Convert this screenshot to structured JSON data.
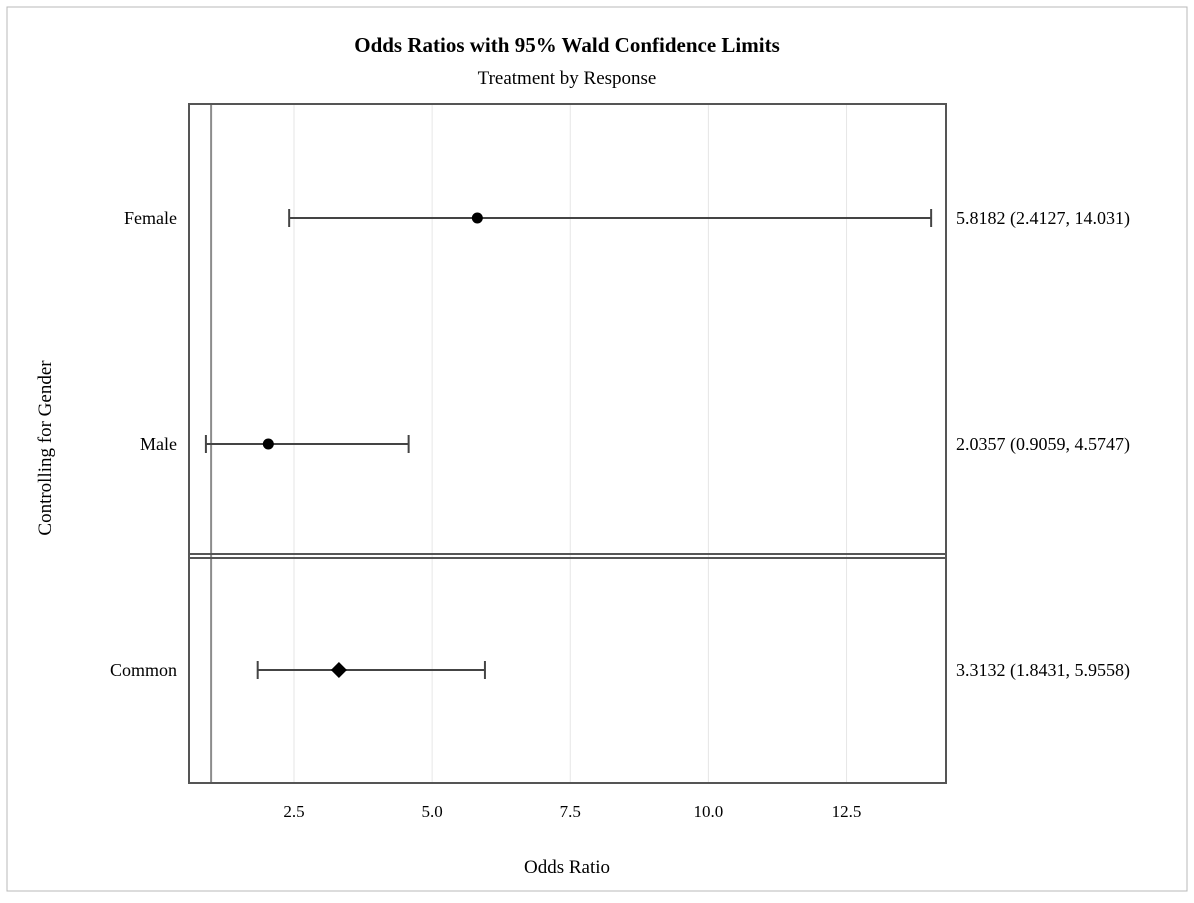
{
  "chart_data": {
    "type": "scatter",
    "title": "Odds Ratios with 95% Wald Confidence Limits",
    "subtitle": "Treatment by Response",
    "xlabel": "Odds Ratio",
    "ylabel": "Controlling for Gender",
    "xlim": [
      0.6,
      14.3
    ],
    "xticks": [
      2.5,
      5.0,
      7.5,
      10.0,
      12.5
    ],
    "xtick_labels": [
      "2.5",
      "5.0",
      "7.5",
      "10.0",
      "12.5"
    ],
    "reference_line": 1.0,
    "grid": true,
    "rows": [
      {
        "label": "Female",
        "estimate": 5.8182,
        "lower": 2.4127,
        "upper": 14.031,
        "marker": "circle",
        "annotation": "5.8182 (2.4127, 14.031)",
        "panel": 0
      },
      {
        "label": "Male",
        "estimate": 2.0357,
        "lower": 0.9059,
        "upper": 4.5747,
        "marker": "circle",
        "annotation": "2.0357 (0.9059, 4.5747)",
        "panel": 0
      },
      {
        "label": "Common",
        "estimate": 3.3132,
        "lower": 1.8431,
        "upper": 5.9558,
        "marker": "diamond",
        "annotation": "3.3132 (1.8431, 5.9558)",
        "panel": 1
      }
    ],
    "colors": {
      "line": "#444444",
      "marker": "#000000",
      "grid": "#e6e6e6",
      "frame": "#555555",
      "ref": "#8c8c8c"
    }
  }
}
